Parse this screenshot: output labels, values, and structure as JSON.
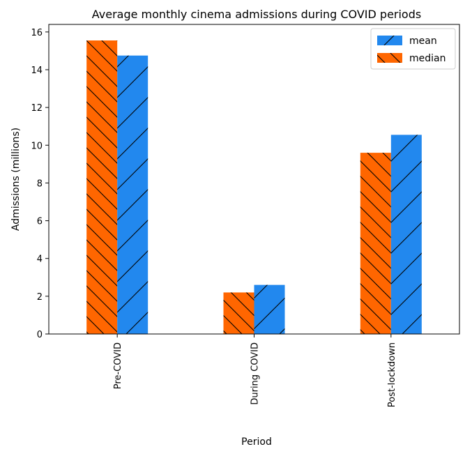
{
  "chart_data": {
    "type": "bar",
    "title": "Average monthly cinema admissions during COVID periods",
    "xlabel": "Period",
    "ylabel": "Admissions (millions)",
    "categories": [
      "Pre-COVID",
      "During COVID",
      "Post-lockdown"
    ],
    "series": [
      {
        "name": "median",
        "values": [
          15.55,
          2.2,
          9.6
        ],
        "color": "#ff6600",
        "hatch": "backslash"
      },
      {
        "name": "mean",
        "values": [
          14.75,
          2.6,
          10.55
        ],
        "color": "#2288ee",
        "hatch": "slash"
      }
    ],
    "ylim": [
      0,
      16.4
    ],
    "yticks": [
      0,
      2,
      4,
      6,
      8,
      10,
      12,
      14,
      16
    ],
    "legend_order": [
      "mean",
      "median"
    ],
    "legend_position": "top-right",
    "grid": false
  }
}
